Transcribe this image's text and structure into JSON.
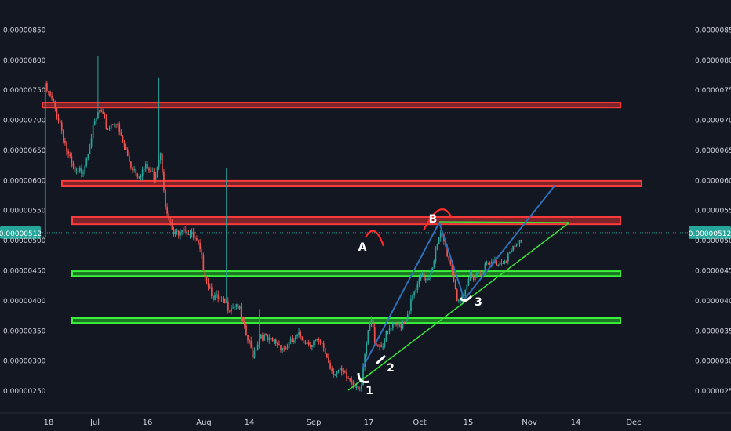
{
  "chart_data": {
    "type": "candlestick",
    "title": "",
    "xlabel": "",
    "ylabel": "",
    "ylim": [
      2.15e-06,
      8.7e-06
    ],
    "x_ticks": [
      "18",
      "Jul",
      "16",
      "Aug",
      "14",
      "Sep",
      "17",
      "Oct",
      "15",
      "Nov",
      "14",
      "Dec"
    ],
    "y_ticks": [
      "0.00000250",
      "0.00000300",
      "0.00000350",
      "0.00000400",
      "0.00000450",
      "0.00000500",
      "0.00000550",
      "0.00000600",
      "0.00000650",
      "0.00000700",
      "0.00000750",
      "0.00000800",
      "0.00000850"
    ],
    "last_price": "0.00000512",
    "grid": false,
    "resistance_zones": [
      {
        "top": 7.28e-06,
        "bottom": 7.2e-06
      },
      {
        "top": 5.98e-06,
        "bottom": 5.9e-06
      },
      {
        "top": 5.38e-06,
        "bottom": 5.26e-06
      }
    ],
    "support_zones": [
      {
        "top": 4.48e-06,
        "bottom": 4.4e-06
      },
      {
        "top": 3.7e-06,
        "bottom": 3.62e-06
      }
    ],
    "annotations": [
      "A",
      "B",
      "1",
      "2",
      "3"
    ],
    "colors": {
      "up": "#26a69a",
      "down": "#ef5350",
      "resistance": "#d32f2f",
      "support": "#22c322",
      "trendline": "#3ae23a",
      "channel": "#2f6fb5",
      "price_label": "#26a69a"
    }
  }
}
